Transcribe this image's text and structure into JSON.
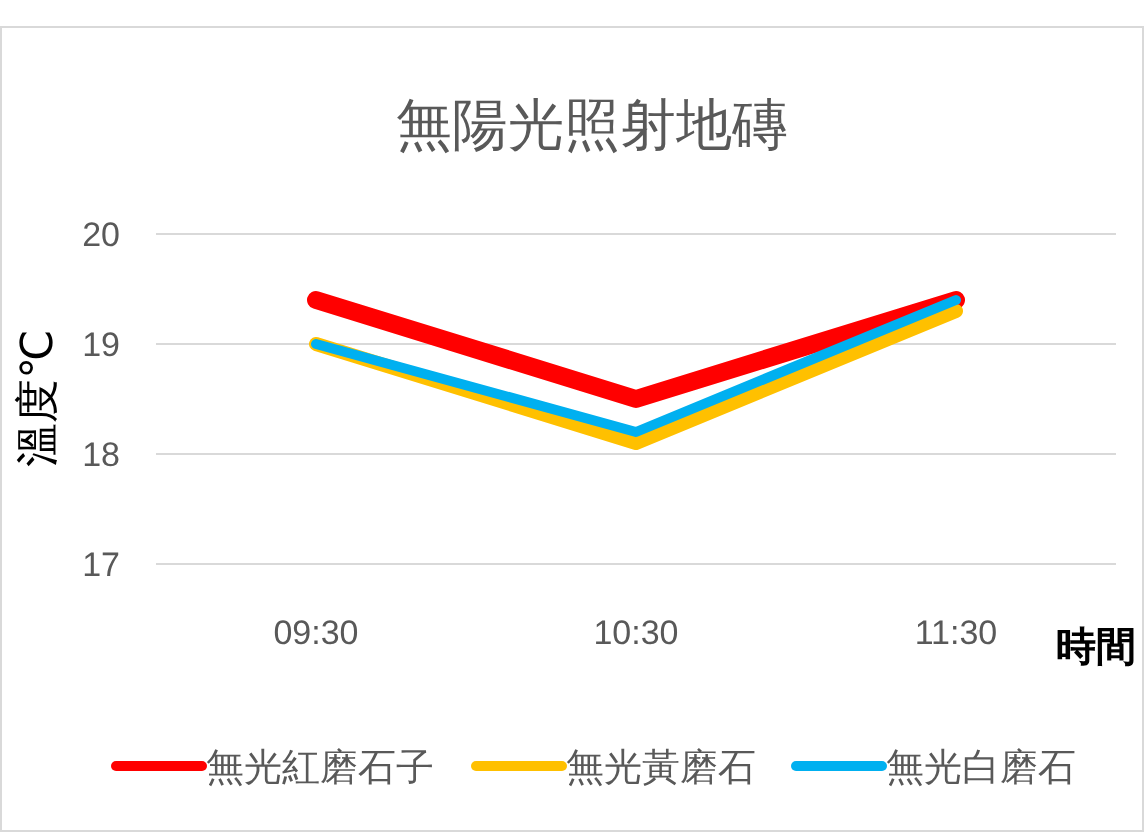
{
  "chart_data": {
    "type": "line",
    "title": "無陽光照射地磚",
    "xlabel": "時間",
    "ylabel": "溫度℃",
    "categories": [
      "09:30",
      "10:30",
      "11:30"
    ],
    "series": [
      {
        "name": "無光紅磨石子",
        "color": "#ff0000",
        "values": [
          19.4,
          18.5,
          19.4
        ]
      },
      {
        "name": "無光黃磨石",
        "color": "#ffc000",
        "values": [
          19.0,
          18.1,
          19.3
        ]
      },
      {
        "name": "無光白磨石",
        "color": "#00b0f0",
        "values": [
          19.0,
          18.2,
          19.4
        ]
      }
    ],
    "ylim": [
      17,
      20
    ],
    "yticks": [
      17,
      18,
      19,
      20
    ],
    "grid": "y",
    "legend": "bottom"
  }
}
